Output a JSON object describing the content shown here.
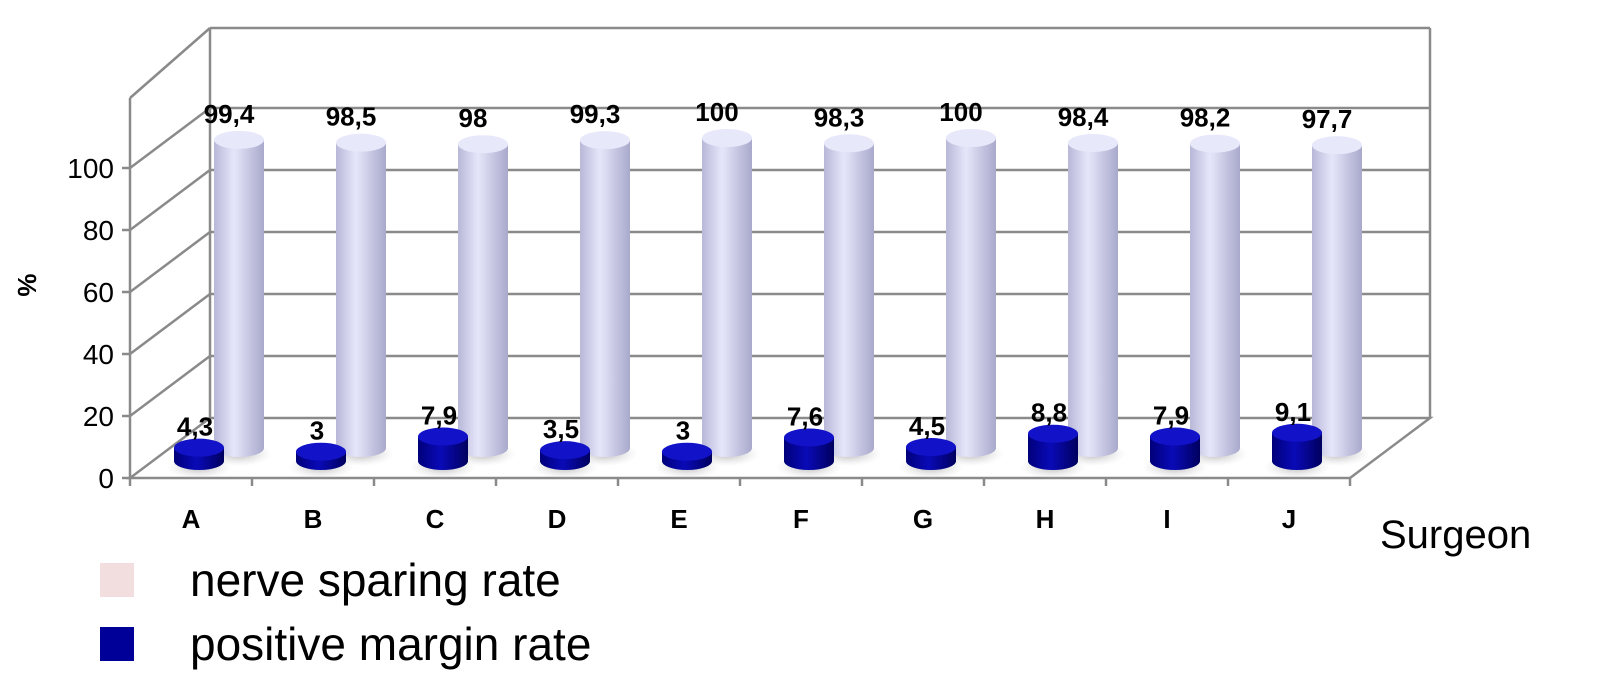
{
  "chart_data": {
    "type": "bar",
    "style": "3d-cylinder",
    "categories": [
      "A",
      "B",
      "C",
      "D",
      "E",
      "F",
      "G",
      "H",
      "I",
      "J"
    ],
    "series": [
      {
        "name": "nerve sparing rate",
        "values": [
          99.4,
          98.5,
          98,
          99.3,
          100,
          98.3,
          100,
          98.4,
          98.2,
          97.7
        ],
        "labels": [
          "99,4",
          "98,5",
          "98",
          "99,3",
          "100",
          "98,3",
          "100",
          "98,4",
          "98,2",
          "97,7"
        ],
        "color": "#dcdcf4",
        "legend_color": "#f2dede"
      },
      {
        "name": "positive margin rate",
        "values": [
          4.3,
          3,
          7.9,
          3.5,
          3,
          7.6,
          4.5,
          8.8,
          7.9,
          9.1
        ],
        "labels": [
          "4,3",
          "3",
          "7,9",
          "3,5",
          "3",
          "7,6",
          "4,5",
          "8,8",
          "7,9",
          "9,1"
        ],
        "color": "#000099",
        "legend_color": "#000099"
      }
    ],
    "yticks": [
      "0",
      "20",
      "40",
      "60",
      "80",
      "100"
    ],
    "ylim": [
      0,
      100
    ],
    "ylabel": "%",
    "xlabel": "Surgeon",
    "grid": true,
    "legend_position": "bottom-left"
  }
}
